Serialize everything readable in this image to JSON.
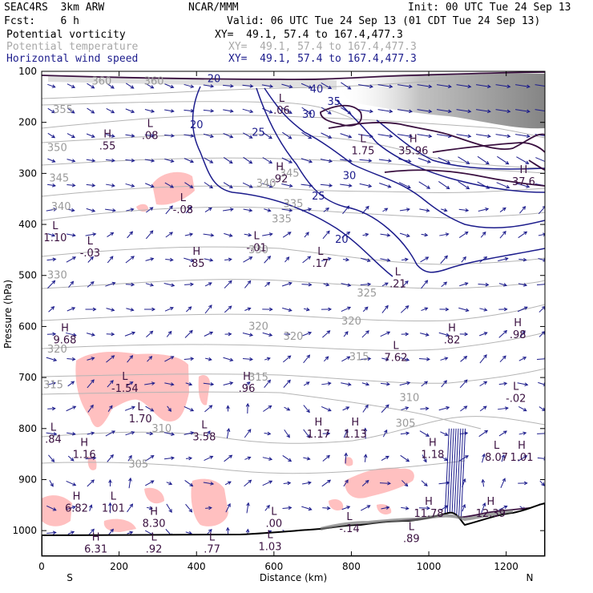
{
  "header": {
    "model": "SEAC4RS  3km ARW",
    "org": "NCAR/MMM",
    "init": "Init: 00 UTC Tue 24 Sep 13",
    "fcst": "Fcst:    6 h",
    "valid": "Valid: 06 UTC Tue 24 Sep 13 (01 CDT Tue 24 Sep 13)",
    "fields": [
      {
        "name": "Potential vorticity",
        "xy": "XY=  49.1, 57.4 to 167.4,477.3",
        "color": "#000000"
      },
      {
        "name": "Potential temperature",
        "xy": "XY=  49.1, 57.4 to 167.4,477.3",
        "color": "#a8a8a8"
      },
      {
        "name": "Horizontal wind speed",
        "xy": "XY=  49.1, 57.4 to 167.4,477.3",
        "color": "#1c1c8c"
      }
    ]
  },
  "chart_data": {
    "type": "contour",
    "xlabel": "Distance (km)",
    "ylabel": "Pressure (hPa)",
    "xlim": [
      0,
      1300
    ],
    "ylim": [
      1050,
      100
    ],
    "x_ticks": [
      0,
      200,
      400,
      600,
      800,
      1000,
      1200
    ],
    "y_ticks": [
      100,
      200,
      300,
      400,
      500,
      600,
      700,
      800,
      900,
      1000
    ],
    "x_end_labels": {
      "left": "S",
      "right": "N"
    },
    "theta_labels": [
      {
        "text": "360",
        "x": 155,
        "p": 120
      },
      {
        "text": "355",
        "x": 55,
        "p": 175
      },
      {
        "text": "350",
        "x": 40,
        "p": 250
      },
      {
        "text": "345",
        "x": 45,
        "p": 310
      },
      {
        "text": "340",
        "x": 50,
        "p": 365
      },
      {
        "text": "335",
        "x": 620,
        "p": 390
      },
      {
        "text": "330",
        "x": 40,
        "p": 500
      },
      {
        "text": "325",
        "x": 840,
        "p": 535
      },
      {
        "text": "320",
        "x": 650,
        "p": 620
      },
      {
        "text": "315",
        "x": 560,
        "p": 700
      },
      {
        "text": "310",
        "x": 950,
        "p": 740
      },
      {
        "text": "305",
        "x": 250,
        "p": 870
      },
      {
        "text": "305",
        "x": 940,
        "p": 790
      },
      {
        "text": "360",
        "x": 290,
        "p": 120
      },
      {
        "text": "345",
        "x": 640,
        "p": 300
      },
      {
        "text": "340",
        "x": 580,
        "p": 320
      },
      {
        "text": "330",
        "x": 560,
        "p": 450
      },
      {
        "text": "320",
        "x": 800,
        "p": 590
      },
      {
        "text": "315",
        "x": 820,
        "p": 660
      },
      {
        "text": "320",
        "x": 40,
        "p": 645
      },
      {
        "text": "315",
        "x": 30,
        "p": 715
      },
      {
        "text": "310",
        "x": 310,
        "p": 800
      },
      {
        "text": "320",
        "x": 560,
        "p": 600
      },
      {
        "text": "335",
        "x": 650,
        "p": 360
      }
    ],
    "wind_speed_labels": [
      {
        "text": "20",
        "x": 445,
        "p": 115
      },
      {
        "text": "20",
        "x": 400,
        "p": 205
      },
      {
        "text": "25",
        "x": 560,
        "p": 220
      },
      {
        "text": "30",
        "x": 690,
        "p": 185
      },
      {
        "text": "30",
        "x": 795,
        "p": 305
      },
      {
        "text": "25",
        "x": 715,
        "p": 345
      },
      {
        "text": "20",
        "x": 775,
        "p": 430
      },
      {
        "text": "35",
        "x": 755,
        "p": 160
      },
      {
        "text": "40",
        "x": 710,
        "p": 135
      }
    ],
    "pv_extrema": [
      {
        "type": "H",
        "value": ".55",
        "x": 170,
        "p": 245
      },
      {
        "type": "L",
        "value": ".08",
        "x": 280,
        "p": 225
      },
      {
        "type": "L",
        "value": "1.10",
        "x": 35,
        "p": 425
      },
      {
        "type": "L",
        "value": "-.03",
        "x": 125,
        "p": 455
      },
      {
        "type": "L",
        "value": "-.08",
        "x": 365,
        "p": 370
      },
      {
        "type": "H",
        "value": ".92",
        "x": 615,
        "p": 310
      },
      {
        "type": "L",
        "value": ".06",
        "x": 620,
        "p": 175
      },
      {
        "type": "L",
        "value": "-.01",
        "x": 555,
        "p": 445
      },
      {
        "type": "H",
        "value": ".85",
        "x": 400,
        "p": 475
      },
      {
        "type": "L",
        "value": ".17",
        "x": 720,
        "p": 475
      },
      {
        "type": "L",
        "value": ".21",
        "x": 920,
        "p": 515
      },
      {
        "type": "L",
        "value": "1.75",
        "x": 830,
        "p": 255
      },
      {
        "type": "H",
        "value": "35.96",
        "x": 960,
        "p": 255
      },
      {
        "type": "H",
        "value": "37.6",
        "x": 1245,
        "p": 315
      },
      {
        "type": "H",
        "value": "9.68",
        "x": 60,
        "p": 625
      },
      {
        "type": "L",
        "value": "7.62",
        "x": 915,
        "p": 660
      },
      {
        "type": "H",
        "value": ".82",
        "x": 1060,
        "p": 625
      },
      {
        "type": "H",
        "value": ".98",
        "x": 1230,
        "p": 615
      },
      {
        "type": "L",
        "value": "-1.54",
        "x": 215,
        "p": 720
      },
      {
        "type": "L",
        "value": "1.70",
        "x": 255,
        "p": 780
      },
      {
        "type": "H",
        "value": ".96",
        "x": 530,
        "p": 720
      },
      {
        "type": "L",
        "value": "-.02",
        "x": 1225,
        "p": 740
      },
      {
        "type": "L",
        "value": ".84",
        "x": 30,
        "p": 820
      },
      {
        "type": "H",
        "value": "1.16",
        "x": 110,
        "p": 850
      },
      {
        "type": "L",
        "value": "3.58",
        "x": 420,
        "p": 815
      },
      {
        "type": "H",
        "value": "1.17",
        "x": 715,
        "p": 810
      },
      {
        "type": "H",
        "value": "1.13",
        "x": 810,
        "p": 810
      },
      {
        "type": "H",
        "value": "1.18",
        "x": 1010,
        "p": 850
      },
      {
        "type": "L",
        "value": "8.07",
        "x": 1175,
        "p": 855
      },
      {
        "type": "H",
        "value": "1.01",
        "x": 1240,
        "p": 855
      },
      {
        "type": "H",
        "value": "6.82",
        "x": 90,
        "p": 955
      },
      {
        "type": "L",
        "value": "1.01",
        "x": 185,
        "p": 955
      },
      {
        "type": "H",
        "value": "8.30",
        "x": 290,
        "p": 985
      },
      {
        "type": "H",
        "value": "6.31",
        "x": 140,
        "p": 1035
      },
      {
        "type": "L",
        "value": ".92",
        "x": 290,
        "p": 1035
      },
      {
        "type": "L",
        "value": ".77",
        "x": 440,
        "p": 1035
      },
      {
        "type": "L",
        "value": ".00",
        "x": 600,
        "p": 985
      },
      {
        "type": "L",
        "value": "1.03",
        "x": 590,
        "p": 1030
      },
      {
        "type": "L",
        "value": "-.14",
        "x": 795,
        "p": 995
      },
      {
        "type": "L",
        "value": ".89",
        "x": 955,
        "p": 1015
      },
      {
        "type": "H",
        "value": "11.78",
        "x": 1000,
        "p": 965
      },
      {
        "type": "H",
        "value": "12.39",
        "x": 1160,
        "p": 965
      }
    ]
  }
}
